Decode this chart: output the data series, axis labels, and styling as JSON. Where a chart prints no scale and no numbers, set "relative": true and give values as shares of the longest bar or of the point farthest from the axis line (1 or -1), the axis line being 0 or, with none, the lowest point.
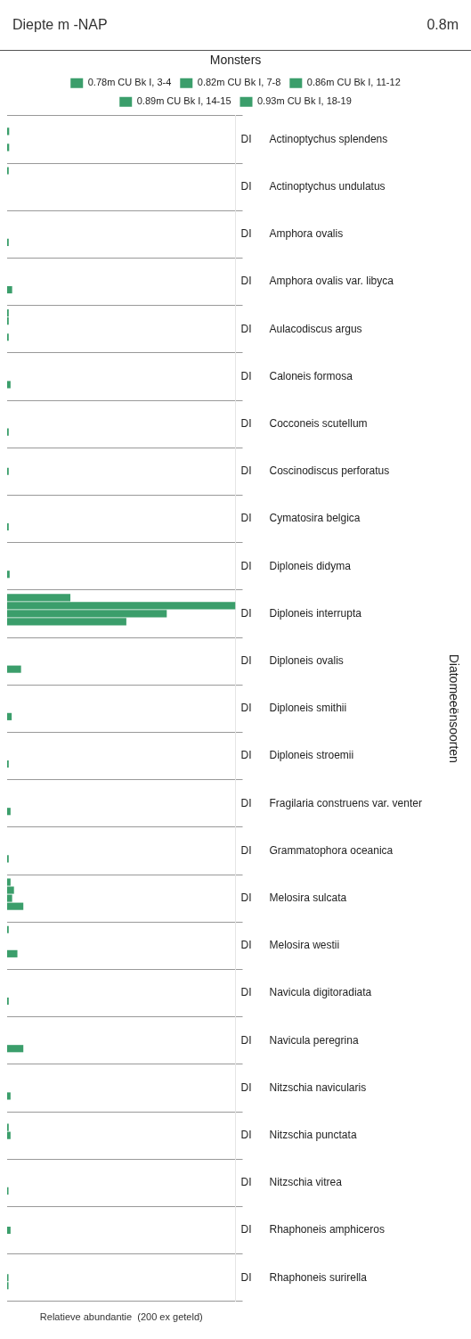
{
  "chart_data": {
    "type": "bar",
    "orientation": "horizontal",
    "relative": true,
    "grid": "y",
    "legend": "top",
    "legend_title": "Monsters",
    "xlabel": "Relatieve abundantie  (200 ex geteld)",
    "ylabel": "Diatomeeënsoorten",
    "categories": [
      "Actinoptychus splendens",
      "Actinoptychus undulatus",
      "Amphora ovalis",
      "Amphora ovalis var. libyca",
      "Aulacodiscus argus",
      "Caloneis formosa",
      "Cocconeis scutellum",
      "Coscinodiscus perforatus",
      "Cymatosira belgica",
      "Diploneis didyma",
      "Diploneis interrupta",
      "Diploneis ovalis",
      "Diploneis smithii",
      "Diploneis stroemii",
      "Fragilaria construens var. venter",
      "Grammatophora oceanica",
      "Melosira sulcata",
      "Melosira westii",
      "Navicula digitoradiata",
      "Navicula peregrina",
      "Nitzschia navicularis",
      "Nitzschia punctata",
      "Nitzschia vitrea",
      "Rhaphoneis amphiceros",
      "Rhaphoneis surirella"
    ],
    "series": [
      {
        "name": "0.78m CU Bk I, 3-4",
        "color": "#3b9e6b",
        "values": [
          0,
          0.007,
          0,
          0,
          0.007,
          0,
          0,
          0,
          0,
          0,
          0.277,
          0,
          0,
          0,
          0,
          0,
          0.015,
          0.007,
          0,
          0,
          0,
          0,
          0,
          0,
          0
        ]
      },
      {
        "name": "0.82m CU Bk I, 7-8",
        "color": "#3b9e6b",
        "values": [
          0.009,
          0,
          0,
          0,
          0.007,
          0,
          0,
          0,
          0,
          0,
          1,
          0,
          0,
          0,
          0,
          0,
          0.03,
          0,
          0,
          0,
          0,
          0.007,
          0,
          0,
          0
        ]
      },
      {
        "name": "0.86m CU Bk I, 11-12",
        "color": "#3b9e6b",
        "values": [
          0,
          0,
          0,
          0,
          0,
          0,
          0,
          0.007,
          0,
          0,
          0.699,
          0,
          0,
          0,
          0,
          0,
          0.022,
          0,
          0,
          0,
          0,
          0.015,
          0,
          0.015,
          0.006
        ]
      },
      {
        "name": "0.89m CU Bk I, 14-15",
        "color": "#3b9e6b",
        "values": [
          0.009,
          0,
          0.007,
          0.022,
          0.007,
          0.015,
          0.007,
          0,
          0.007,
          0.011,
          0.522,
          0.061,
          0.02,
          0.007,
          0.015,
          0.007,
          0.071,
          0.045,
          0.007,
          0.071,
          0.015,
          0,
          0.006,
          0,
          0.006
        ]
      },
      {
        "name": "0.93m CU Bk I, 18-19",
        "color": "#3b9e6b",
        "values": [
          0,
          0,
          0,
          0,
          0,
          0,
          0,
          0,
          0,
          0,
          0,
          0,
          0,
          0,
          0,
          0,
          0,
          0,
          0,
          0,
          0,
          0,
          0,
          0,
          0
        ]
      }
    ],
    "annotations": [
      "Diepte m -NAP",
      "0.8m",
      "DI",
      "DI",
      "DI",
      "DI",
      "DI",
      "DI",
      "DI",
      "DI",
      "DI",
      "DI",
      "DI",
      "DI",
      "DI",
      "DI",
      "DI",
      "DI",
      "DI",
      "DI",
      "DI",
      "DI",
      "DI",
      "DI",
      "DI",
      "DI",
      "DI"
    ]
  }
}
